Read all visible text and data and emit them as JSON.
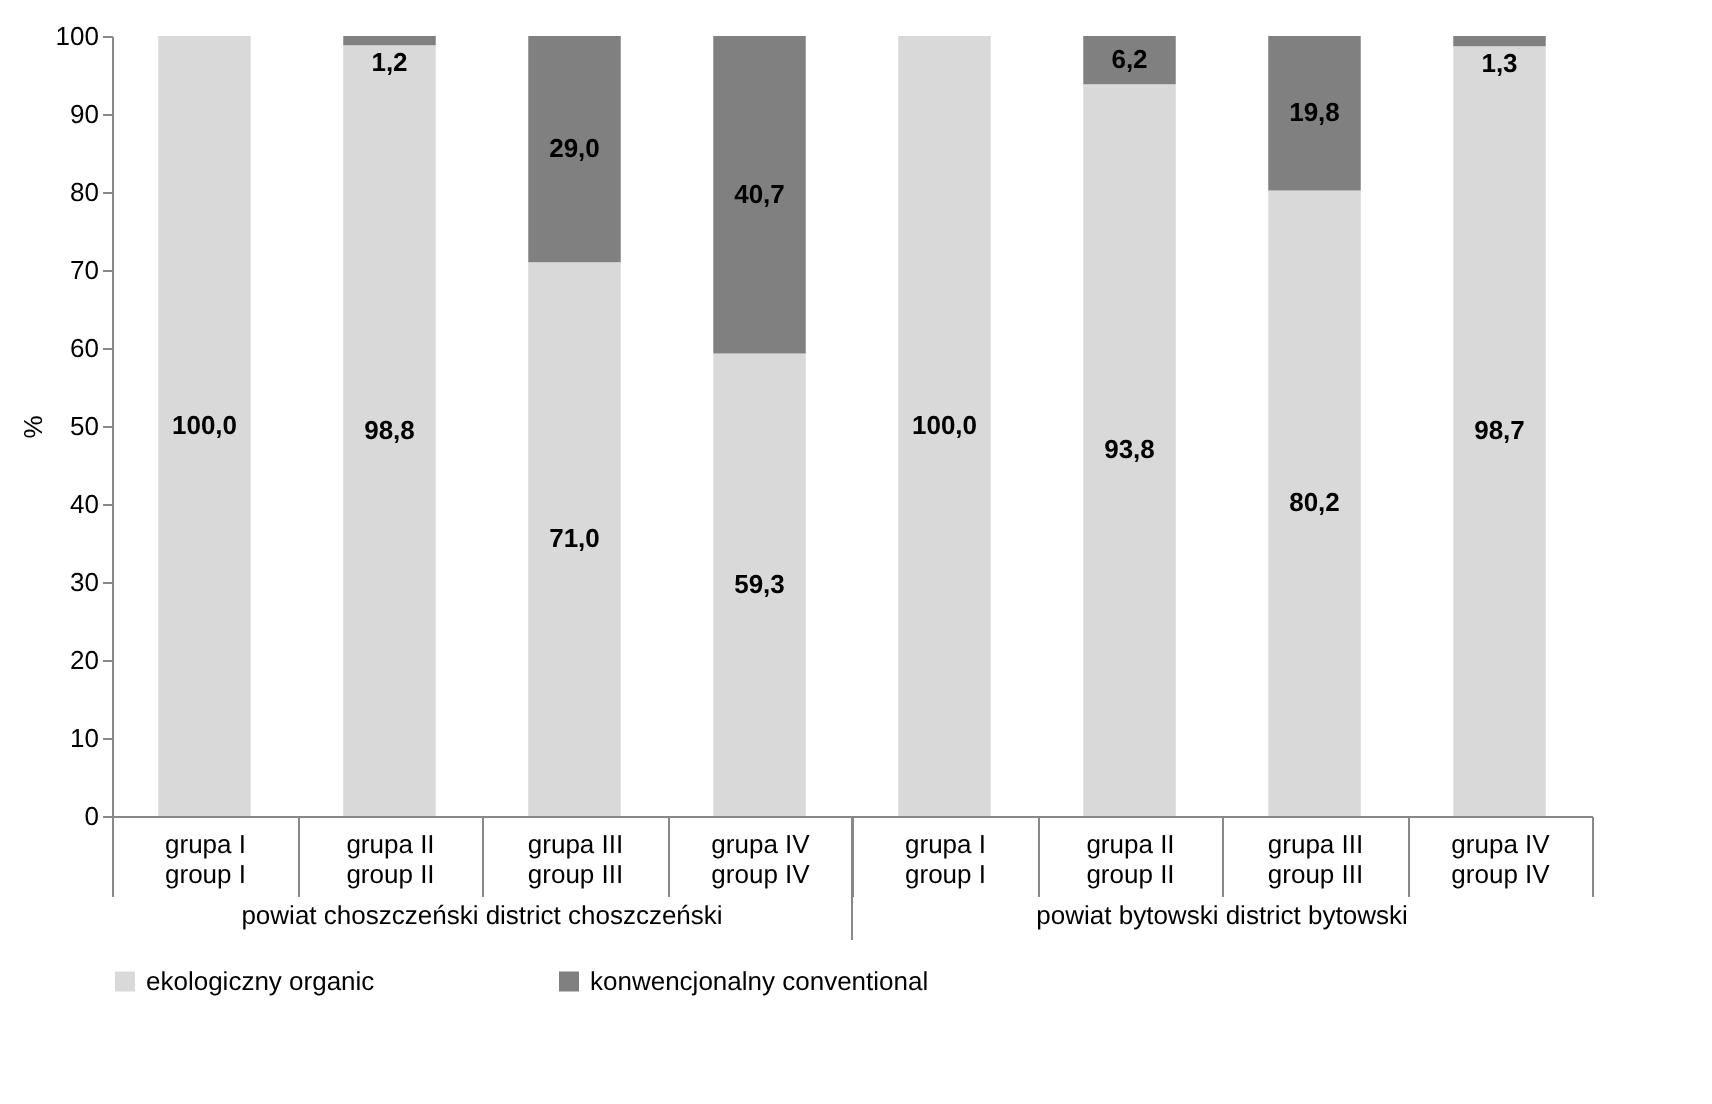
{
  "chart_data": {
    "type": "bar",
    "stacked": true,
    "categories": [
      "grupa I\ngroup I",
      "grupa II\ngroup II",
      "grupa III\ngroup III",
      "grupa IV\ngroup IV",
      "grupa I\ngroup I",
      "grupa II\ngroup II",
      "grupa III\ngroup III",
      "grupa IV\ngroup IV"
    ],
    "series": [
      {
        "name": "ekologiczny organic",
        "color": "#d9d9d9",
        "values": [
          100.0,
          98.8,
          71.0,
          59.3,
          100.0,
          93.8,
          80.2,
          98.7
        ],
        "value_labels": [
          "100,0",
          "98,8",
          "71,0",
          "59,3",
          "100,0",
          "93,8",
          "80,2",
          "98,7"
        ]
      },
      {
        "name": "konwencjonalny conventional",
        "color": "#808080",
        "values": [
          0,
          1.2,
          29.0,
          40.7,
          0,
          6.2,
          19.8,
          1.3
        ],
        "value_labels": [
          null,
          "1,2",
          "29,0",
          "40,7",
          null,
          "6,2",
          "19,8",
          "1,3"
        ]
      }
    ],
    "ylabel": "%",
    "ylim": [
      0,
      100
    ],
    "yticks": [
      0,
      10,
      20,
      30,
      40,
      50,
      60,
      70,
      80,
      90,
      100
    ],
    "annotations": [
      "powiat choszczeński district choszczeński",
      "powiat bytowski district bytowski"
    ],
    "grid": false,
    "legend": "bottom"
  }
}
